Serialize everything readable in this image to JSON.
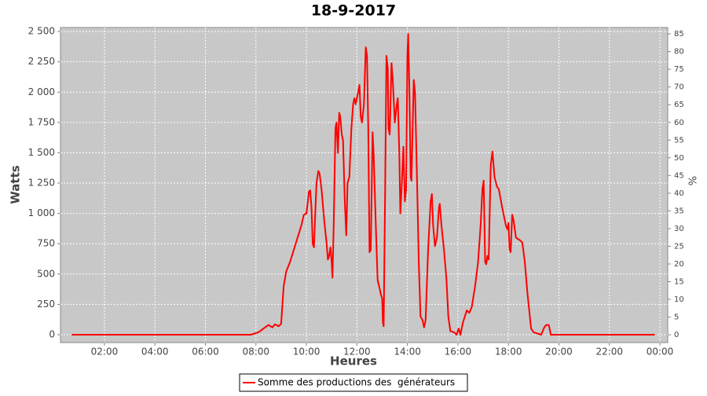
{
  "chart_data": {
    "type": "line",
    "title": "18-9-2017",
    "xlabel": "Heures",
    "ylabel": "Watts",
    "y2label": "%",
    "x": [
      0.7,
      7.8,
      8.1,
      8.3,
      8.5,
      8.65,
      8.75,
      8.9,
      9.0,
      9.1,
      9.2,
      9.35,
      9.5,
      9.65,
      9.8,
      9.9,
      10.0,
      10.1,
      10.15,
      10.2,
      10.25,
      10.3,
      10.35,
      10.4,
      10.47,
      10.52,
      10.6,
      10.7,
      10.8,
      10.85,
      10.9,
      10.95,
      11.0,
      11.03,
      11.08,
      11.15,
      11.19,
      11.25,
      11.3,
      11.34,
      11.4,
      11.45,
      11.52,
      11.58,
      11.63,
      11.7,
      11.78,
      11.85,
      11.9,
      11.95,
      12.05,
      12.1,
      12.15,
      12.2,
      12.28,
      12.35,
      12.4,
      12.45,
      12.5,
      12.55,
      12.62,
      12.66,
      12.75,
      12.82,
      12.9,
      12.95,
      13.0,
      13.03,
      13.06,
      13.12,
      13.17,
      13.22,
      13.25,
      13.3,
      13.37,
      13.42,
      13.5,
      13.58,
      13.62,
      13.68,
      13.72,
      13.77,
      13.84,
      13.9,
      13.95,
      14.0,
      14.03,
      14.08,
      14.13,
      14.16,
      14.25,
      14.3,
      14.38,
      14.45,
      14.52,
      14.6,
      14.66,
      14.72,
      14.82,
      14.92,
      14.97,
      15.02,
      15.09,
      15.17,
      15.25,
      15.28,
      15.35,
      15.45,
      15.55,
      15.62,
      15.7,
      15.85,
      15.95,
      16.03,
      16.1,
      16.2,
      16.35,
      16.45,
      16.55,
      16.68,
      16.8,
      16.9,
      16.97,
      17.02,
      17.08,
      17.12,
      17.17,
      17.22,
      17.3,
      17.37,
      17.45,
      17.55,
      17.62,
      17.75,
      17.9,
      17.96,
      18.0,
      18.05,
      18.09,
      18.15,
      18.2,
      18.3,
      18.45,
      18.55,
      18.65,
      18.75,
      18.85,
      18.9,
      19.0,
      19.3,
      19.42,
      19.5,
      19.6,
      19.68,
      23.8
    ],
    "series": [
      {
        "name": "Somme des productions des  générateurs",
        "color": "#ff0000",
        "values": [
          0,
          0,
          20,
          50,
          80,
          60,
          85,
          70,
          90,
          400,
          520,
          600,
          700,
          800,
          900,
          990,
          1000,
          1180,
          1190,
          1050,
          750,
          720,
          1000,
          1250,
          1350,
          1330,
          1200,
          950,
          750,
          620,
          650,
          720,
          600,
          470,
          900,
          1700,
          1750,
          1500,
          1830,
          1800,
          1650,
          1600,
          1100,
          820,
          1250,
          1300,
          1700,
          1900,
          1950,
          1900,
          2000,
          2060,
          1800,
          1750,
          1900,
          2370,
          2300,
          1700,
          680,
          700,
          1670,
          1500,
          900,
          450,
          380,
          330,
          300,
          100,
          70,
          1200,
          2300,
          2200,
          1700,
          1650,
          2240,
          2100,
          1750,
          1900,
          1950,
          1500,
          1000,
          1200,
          1550,
          1100,
          1200,
          2300,
          2480,
          2000,
          1300,
          1270,
          2100,
          2000,
          1300,
          600,
          150,
          120,
          60,
          120,
          700,
          1100,
          1160,
          900,
          730,
          800,
          1050,
          1080,
          900,
          700,
          450,
          150,
          30,
          20,
          0,
          50,
          0,
          100,
          200,
          180,
          230,
          400,
          600,
          900,
          1200,
          1270,
          600,
          580,
          650,
          620,
          1400,
          1510,
          1300,
          1220,
          1200,
          1050,
          900,
          870,
          920,
          700,
          680,
          990,
          950,
          800,
          780,
          760,
          600,
          350,
          150,
          50,
          20,
          0,
          60,
          80,
          80,
          0,
          0
        ]
      }
    ],
    "xlim": [
      0.26,
      24.31
    ],
    "xticks": [
      {
        "value": 2,
        "label": "02:00"
      },
      {
        "value": 4,
        "label": "04:00"
      },
      {
        "value": 6,
        "label": "06:00"
      },
      {
        "value": 8,
        "label": "08:00"
      },
      {
        "value": 10,
        "label": "10:00"
      },
      {
        "value": 12,
        "label": "12:00"
      },
      {
        "value": 14,
        "label": "14:00"
      },
      {
        "value": 16,
        "label": "16:00"
      },
      {
        "value": 18,
        "label": "18:00"
      },
      {
        "value": 20,
        "label": "20:00"
      },
      {
        "value": 22,
        "label": "22:00"
      },
      {
        "value": 24,
        "label": "00:00"
      }
    ],
    "ylim": [
      -65,
      2533
    ],
    "yticks": [
      0,
      250,
      500,
      750,
      {
        "value": 1000,
        "label": "1 000"
      },
      {
        "value": 1250,
        "label": "1 250"
      },
      {
        "value": 1500,
        "label": "1 500"
      },
      {
        "value": 1750,
        "label": "1 750"
      },
      {
        "value": 2000,
        "label": "2 000"
      },
      {
        "value": 2250,
        "label": "2 250"
      },
      {
        "value": 2500,
        "label": "2 500"
      }
    ],
    "y2lim": [
      -2.2,
      86.8
    ],
    "y2ticks": [
      0,
      5,
      10,
      15,
      20,
      25,
      30,
      35,
      40,
      45,
      50,
      55,
      60,
      65,
      70,
      75,
      80,
      85
    ],
    "grid": true,
    "legend": "bottom"
  }
}
